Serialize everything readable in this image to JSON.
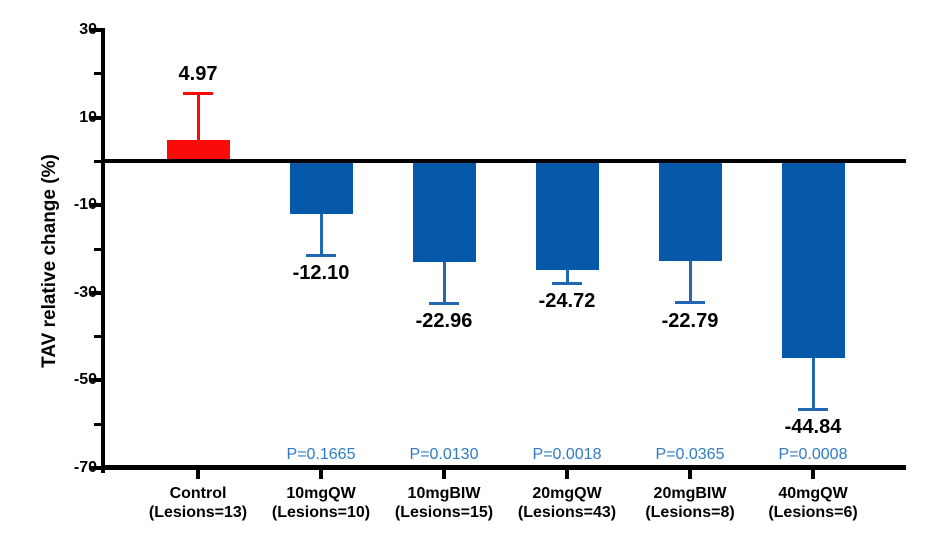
{
  "chart_data": {
    "type": "bar",
    "title": "",
    "ylabel": "TAV relative change (%)",
    "xlabel": "",
    "ylim": [
      -70,
      30
    ],
    "yticks_major": [
      30,
      10,
      -10,
      -30,
      -50,
      -70
    ],
    "ytick_labels": [
      "30",
      "10",
      "-10",
      "-30",
      "-50",
      "-70"
    ],
    "yticks_minor": [
      20,
      0,
      -20,
      -40,
      -60
    ],
    "grid": false,
    "legend": false,
    "error_bar_style": "one-sided SD, away from zero",
    "categories": [
      "Control (Lesions=13)",
      "10mgQW (Lesions=10)",
      "10mgBIW (Lesions=15)",
      "20mgQW (Lesions=43)",
      "20mgBIW (Lesions=8)",
      "40mgQW (Lesions=6)"
    ],
    "bars": [
      {
        "group": "Control",
        "lesions_label": "(Lesions=13)",
        "value": 4.97,
        "value_label": "4.97",
        "error_sd": 10.6,
        "error_direction": "up",
        "p_label": "",
        "bar_color": "#FB0A0A",
        "error_color": "#FB0A0A"
      },
      {
        "group": "10mgQW",
        "lesions_label": "(Lesions=10)",
        "value": -12.1,
        "value_label": "-12.10",
        "error_sd": 9.3,
        "error_direction": "down",
        "p_label": "P=0.1665",
        "bar_color": "#0659A9",
        "error_color": "#2167B1"
      },
      {
        "group": "10mgBIW",
        "lesions_label": "(Lesions=15)",
        "value": -22.96,
        "value_label": "-22.96",
        "error_sd": 9.4,
        "error_direction": "down",
        "p_label": "P=0.0130",
        "bar_color": "#0659A9",
        "error_color": "#2167B1"
      },
      {
        "group": "20mgQW",
        "lesions_label": "(Lesions=43)",
        "value": -24.72,
        "value_label": "-24.72",
        "error_sd": 3.1,
        "error_direction": "down",
        "p_label": "P=0.0018",
        "bar_color": "#0659A9",
        "error_color": "#2167B1"
      },
      {
        "group": "20mgBIW",
        "lesions_label": "(Lesions=8)",
        "value": -22.79,
        "value_label": "-22.79",
        "error_sd": 9.5,
        "error_direction": "down",
        "p_label": "P=0.0365",
        "bar_color": "#0659A9",
        "error_color": "#2167B1"
      },
      {
        "group": "40mgQW",
        "lesions_label": "(Lesions=6)",
        "value": -44.84,
        "value_label": "-44.84",
        "error_sd": 11.7,
        "error_direction": "down",
        "p_label": "P=0.0008",
        "bar_color": "#0659A9",
        "error_color": "#2167B1"
      }
    ],
    "colors": {
      "axis": "#000000",
      "value_label_text": "#000000",
      "p_label_text": "#2F7BC5",
      "control_bar": "#FB0A0A",
      "treatment_bar": "#0659A9",
      "treatment_error": "#2167B1",
      "background": "#FFFFFF"
    }
  }
}
